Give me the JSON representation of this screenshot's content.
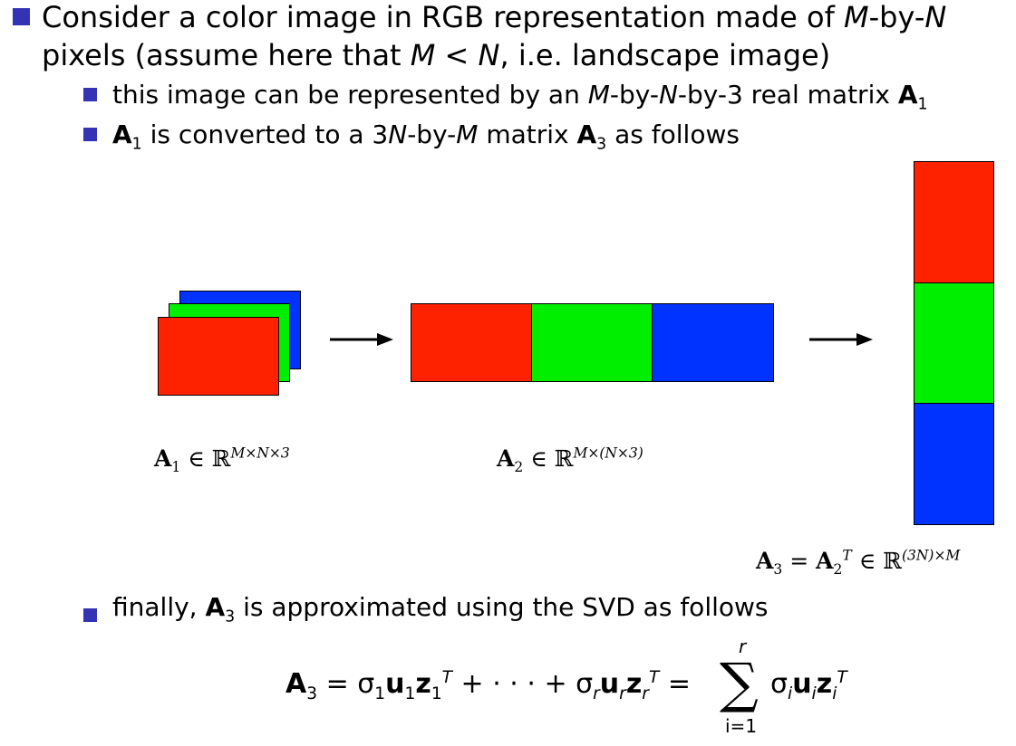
{
  "bullet1": {
    "line1": [
      "Consider a color image in RGB representation made of ",
      "M",
      "-by-",
      "N"
    ],
    "line2": [
      "pixels (assume here that ",
      "M < N",
      ", i.e. landscape image)"
    ]
  },
  "sub1": [
    "this image can be represented by an ",
    "M",
    "-by-",
    "N",
    "-by-3 real matrix ",
    "A",
    "1"
  ],
  "sub2": [
    "A",
    "1",
    " is converted to a 3",
    "N",
    "-by-",
    "M",
    " matrix ",
    "A",
    "3",
    " as follows"
  ],
  "sub3": [
    "finally, ",
    "A",
    "3",
    " is approximated using the SVD as follows"
  ],
  "labels": {
    "a1": {
      "sym": "A",
      "sub": "1",
      "rel": " ∈ ℝ",
      "sup": "M×N×3"
    },
    "a2": {
      "sym": "A",
      "sub": "2",
      "rel": " ∈ ℝ",
      "sup": "M×(N×3)"
    },
    "a3": {
      "sym": "A",
      "sub": "3",
      "mid": " = ",
      "sym2": "A",
      "sub2": "2",
      "sup2": "T",
      "rel": " ∈ ℝ",
      "sup": "(3N)×M"
    }
  },
  "equation": {
    "lhs": "A",
    "lhs_sub": "3",
    "t1": " = σ",
    "t1_sub": "1",
    "u1": "u",
    "u1_sub": "1",
    "z1": "z",
    "z1_sub": "1",
    "z1_sup": "T",
    "dots": " + · · · + σ",
    "tr_sub": "r",
    "ur": "u",
    "ur_sub": "r",
    "zr": "z",
    "zr_sub": "r",
    "zr_sup": "T",
    "eq2": " = ",
    "sum": "∑",
    "sum_top": "r",
    "sum_bottom": "i=1",
    "term": "σ",
    "term_sub": "i",
    "ui": "u",
    "ui_sub": "i",
    "zi": "z",
    "zi_sub": "i",
    "zi_sup": "T"
  },
  "colors": {
    "red": "#ff2200",
    "green": "#00ee00",
    "blue": "#0033ff",
    "bullet": "#3333b3"
  }
}
